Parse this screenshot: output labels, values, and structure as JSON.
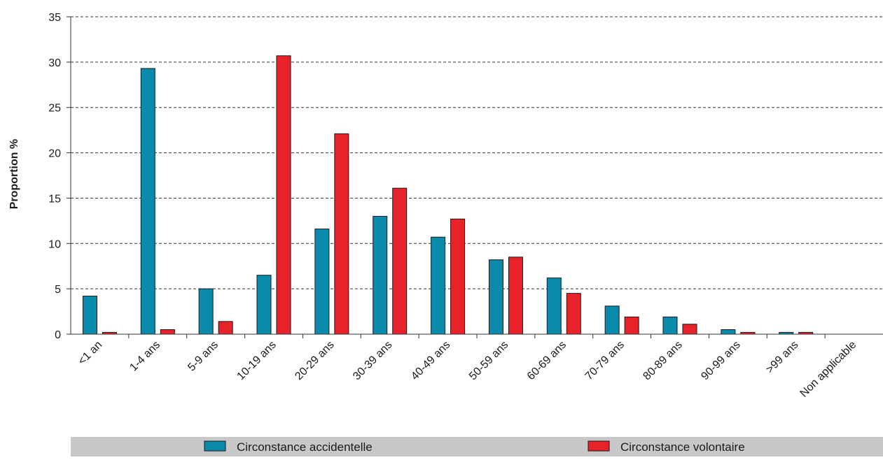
{
  "chart_data": {
    "type": "bar",
    "categories": [
      "<1 an",
      "1-4 ans",
      "5-9 ans",
      "10-19 ans",
      "20-29 ans",
      "30-39 ans",
      "40-49 ans",
      "50-59 ans",
      "60-69 ans",
      "70-79 ans",
      "80-89 ans",
      "90-99 ans",
      ">99 ans",
      "Non applicable"
    ],
    "series": [
      {
        "name": "Circonstance accidentelle",
        "color": "#0a8bab",
        "values": [
          4.2,
          29.3,
          5.0,
          6.5,
          11.6,
          13.0,
          10.7,
          8.2,
          6.2,
          3.1,
          1.9,
          0.5,
          0.2,
          0
        ]
      },
      {
        "name": "Circonstance volontaire",
        "color": "#e8222b",
        "values": [
          0.2,
          0.5,
          1.4,
          30.7,
          22.1,
          16.1,
          12.7,
          8.5,
          4.5,
          1.9,
          1.1,
          0.2,
          0.2,
          0
        ]
      }
    ],
    "title": "",
    "xlabel": "",
    "ylabel": "Proportion %",
    "ylim": [
      0,
      35
    ],
    "yticks": [
      0,
      5,
      10,
      15,
      20,
      25,
      30,
      35
    ],
    "grid": true,
    "legend_position": "bottom"
  }
}
